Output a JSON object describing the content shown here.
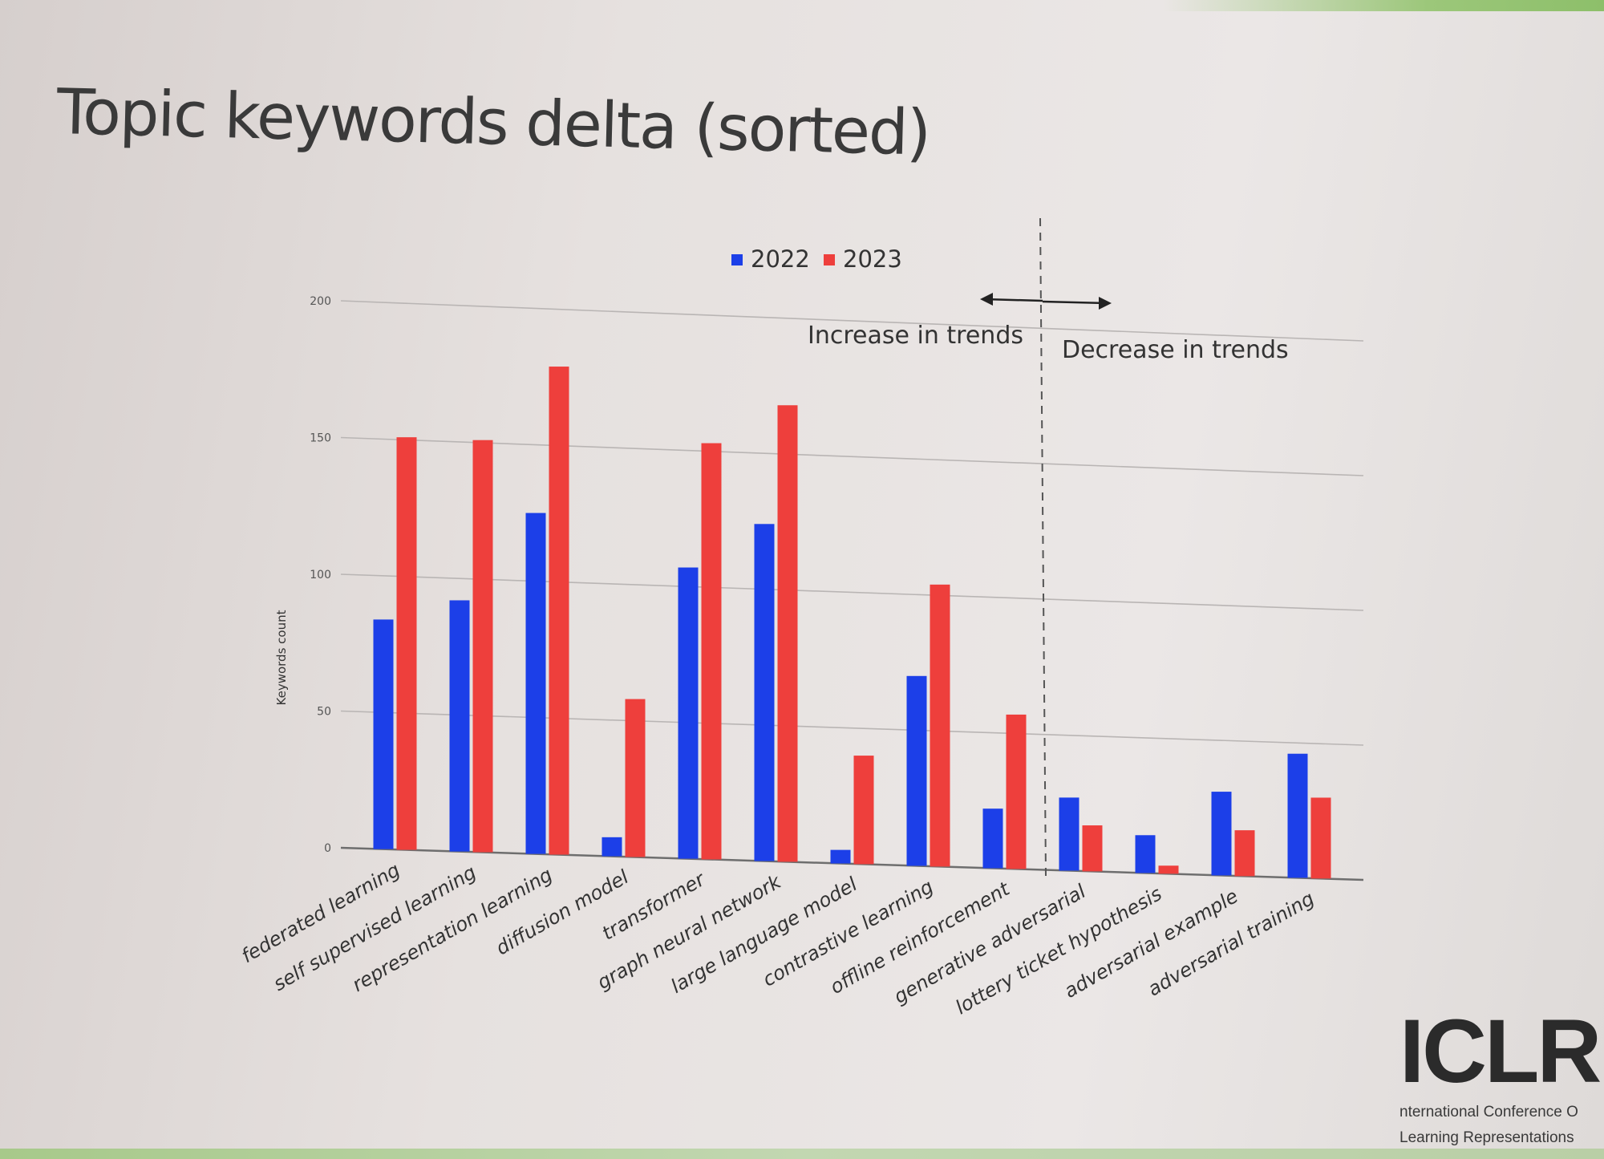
{
  "slide": {
    "title": "Topic keywords delta (sorted)",
    "logo": {
      "mark": "ICLR",
      "subtitle_line1": "nternational Conference O",
      "subtitle_line2": "Learning Representations"
    }
  },
  "chart_data": {
    "type": "bar",
    "title": "",
    "ylabel": "Keywords count",
    "xlabel": "",
    "ylim": [
      0,
      200
    ],
    "yticks": [
      0,
      50,
      100,
      150,
      200
    ],
    "grid": true,
    "legend_position": "top-center",
    "categories": [
      "federated learning",
      "self supervised learning",
      "representation learning",
      "diffusion model",
      "transformer",
      "graph neural network",
      "large language model",
      "contrastive learning",
      "offline reinforcement",
      "generative adversarial",
      "lottery ticket hypothesis",
      "adversarial example",
      "adversarial training"
    ],
    "series": [
      {
        "name": "2022",
        "color": "#1c3fe8",
        "values": [
          84,
          92,
          125,
          7,
          107,
          124,
          5,
          70,
          22,
          27,
          14,
          31,
          46
        ]
      },
      {
        "name": "2023",
        "color": "#ee3f3c",
        "values": [
          151,
          151,
          179,
          58,
          153,
          168,
          40,
          104,
          57,
          17,
          3,
          17,
          30
        ]
      }
    ],
    "annotations": {
      "divider_after_index": 8,
      "left_label": "Increase in trends",
      "right_label": "Decrease in trends"
    }
  }
}
